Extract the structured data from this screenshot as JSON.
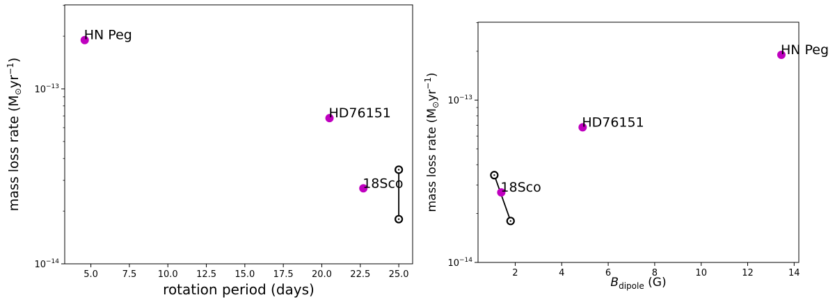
{
  "chart_data": [
    {
      "type": "scatter",
      "xscale": "linear",
      "yscale": "log",
      "xlabel": "rotation period (days)",
      "ylabel_main": "mass loss rate (",
      "ylabel_mdot": "M",
      "ylabel_sun": "⊙",
      "ylabel_unit": "yr",
      "ylabel_exp": "−1",
      "ylabel_close": ")",
      "xlim": [
        3.3,
        25.9
      ],
      "ylim_log10": [
        -14,
        -12.52
      ],
      "xticks": [
        5.0,
        7.5,
        10.0,
        12.5,
        15.0,
        17.5,
        20.0,
        22.5,
        25.0
      ],
      "xtick_labels": [
        "5.0",
        "7.5",
        "10.0",
        "12.5",
        "15.0",
        "17.5",
        "20.0",
        "22.5",
        "25.0"
      ],
      "yticks": [
        {
          "exp": -13,
          "label_base": "10",
          "label_exp": "−13"
        },
        {
          "exp": -14,
          "label_base": "10",
          "label_exp": "−14"
        }
      ],
      "points": [
        {
          "name": "HN Peg",
          "x": 4.6,
          "y": 1.9e-13,
          "color": "#bf00bf"
        },
        {
          "name": "HD76151",
          "x": 20.5,
          "y": 6.8e-14,
          "color": "#bf00bf"
        },
        {
          "name": "18Sco",
          "x": 22.7,
          "y": 2.7e-14,
          "color": "#bf00bf"
        }
      ],
      "range_segment": {
        "x0": 25.0,
        "y0": 3.45e-14,
        "x1": 25.0,
        "y1": 1.8e-14,
        "color": "#000000"
      }
    },
    {
      "type": "scatter",
      "xscale": "linear",
      "yscale": "log",
      "xlabel_symbol": "B",
      "xlabel_sub": "dipole",
      "xlabel_unit": " (G)",
      "ylabel_main": "mass loss rate (",
      "ylabel_mdot": "M",
      "ylabel_sun": "⊙",
      "ylabel_unit": "yr",
      "ylabel_exp": "−1",
      "ylabel_close": ")",
      "xlim": [
        0.4,
        14.2
      ],
      "ylim_log10": [
        -14,
        -12.52
      ],
      "xticks": [
        2,
        4,
        6,
        8,
        10,
        12,
        14
      ],
      "xtick_labels": [
        "2",
        "4",
        "6",
        "8",
        "10",
        "12",
        "14"
      ],
      "yticks": [
        {
          "exp": -13,
          "label_base": "10",
          "label_exp": "−13"
        },
        {
          "exp": -14,
          "label_base": "10",
          "label_exp": "−14"
        }
      ],
      "points": [
        {
          "name": "HN Peg",
          "x": 13.45,
          "y": 1.9e-13,
          "color": "#bf00bf"
        },
        {
          "name": "HD76151",
          "x": 4.9,
          "y": 6.8e-14,
          "color": "#bf00bf"
        },
        {
          "name": "18Sco",
          "x": 1.4,
          "y": 2.7e-14,
          "color": "#bf00bf"
        }
      ],
      "range_segment": {
        "x0": 1.1,
        "y0": 3.45e-14,
        "x1": 1.8,
        "y1": 1.8e-14,
        "color": "#000000"
      }
    }
  ]
}
